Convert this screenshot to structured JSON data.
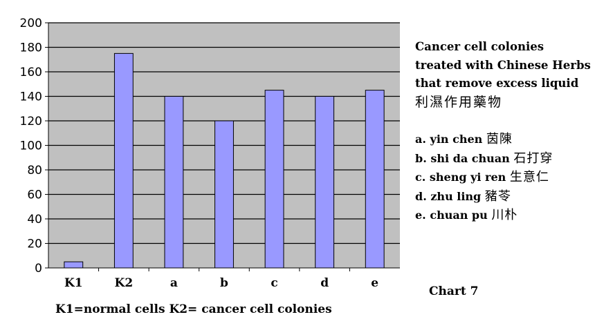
{
  "chart_data": {
    "type": "bar",
    "categories": [
      "K1",
      "K2",
      "a",
      "b",
      "c",
      "d",
      "e"
    ],
    "values": [
      5,
      175,
      140,
      120,
      145,
      140,
      145
    ],
    "ylim": [
      0,
      200
    ],
    "yticks": [
      0,
      20,
      40,
      60,
      80,
      100,
      120,
      140,
      160,
      180,
      200
    ],
    "grid": true,
    "colors": {
      "bar": "#9999ff",
      "bar_edge": "#000000",
      "plot_bg": "#c0c0c0"
    },
    "title_lines": [
      "Cancer cell colonies",
      "treated with Chinese Herbs",
      "that remove excess liquid"
    ],
    "title_chinese": "利濕作用藥物",
    "legend": [
      {
        "key": "a.",
        "name": "yin chen",
        "zh": "茵陳"
      },
      {
        "key": "b.",
        "name": "shi da chuan",
        "zh": "石打穿"
      },
      {
        "key": "c.",
        "name": "sheng yi ren",
        "zh": "生意仁"
      },
      {
        "key": "d.",
        "name": "zhu ling",
        "zh": "豬苓"
      },
      {
        "key": "e.",
        "name": "chuan pu",
        "zh": "川朴"
      }
    ],
    "chart_label": "Chart 7",
    "footnote": "K1=normal cells  K2= cancer cell colonies"
  }
}
